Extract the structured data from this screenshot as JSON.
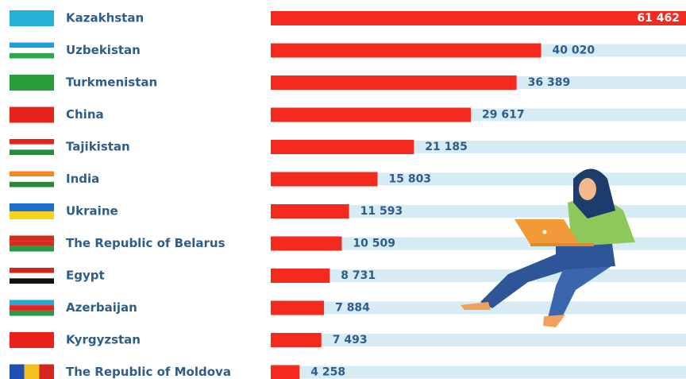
{
  "chart_data": {
    "type": "bar",
    "orientation": "horizontal",
    "categories": [
      "Kazakhstan",
      "Uzbekistan",
      "Turkmenistan",
      "China",
      "Tajikistan",
      "India",
      "Ukraine",
      "The Republic of Belarus",
      "Egypt",
      "Azerbaijan",
      "Kyrgyzstan",
      "The Republic of Moldova"
    ],
    "values": [
      61462,
      40020,
      36389,
      29617,
      21185,
      15803,
      11593,
      10509,
      8731,
      7884,
      7493,
      4258
    ],
    "value_labels": [
      "61 462",
      "40 020",
      "36 389",
      "29 617",
      "21 185",
      "15 803",
      "11 593",
      "10 509",
      "8 731",
      "7 884",
      "7 493",
      "4 258"
    ],
    "color": "#f42a1f",
    "track_color": "#d6ebf3"
  }
}
